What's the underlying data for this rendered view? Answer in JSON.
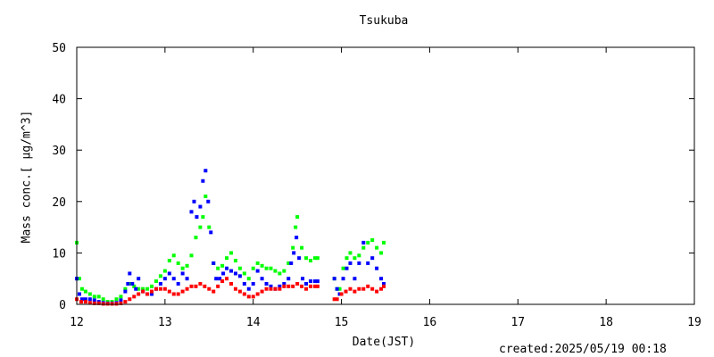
{
  "chart_data": {
    "type": "scatter",
    "title": "Tsukuba",
    "xlabel": "Date(JST)",
    "ylabel": "Mass conc.[ μg/m^3]",
    "footer": "created:2025/05/19 00:18",
    "xlim": [
      12,
      19
    ],
    "ylim": [
      0,
      50
    ],
    "xticks": [
      12,
      13,
      14,
      15,
      16,
      17,
      18,
      19
    ],
    "yticks": [
      0,
      10,
      20,
      30,
      40,
      50
    ],
    "grid": false,
    "legend": "none",
    "colors": {
      "green": "#00ff00",
      "blue": "#0000ff",
      "red": "#ff0000",
      "axis": "#000000"
    },
    "series": [
      {
        "color": "#00ff00",
        "x": [
          12.0,
          12.03,
          12.06,
          12.1,
          12.15,
          12.2,
          12.25,
          12.3,
          12.35,
          12.4,
          12.45,
          12.5,
          12.55,
          12.6,
          12.65,
          12.7,
          12.75,
          12.8,
          12.85,
          12.9,
          12.95,
          13.0,
          13.05,
          13.1,
          13.15,
          13.2,
          13.25,
          13.3,
          13.35,
          13.4,
          13.43,
          13.46,
          13.5,
          13.55,
          13.6,
          13.65,
          13.7,
          13.75,
          13.8,
          13.85,
          13.9,
          13.95,
          14.0,
          14.05,
          14.1,
          14.15,
          14.2,
          14.25,
          14.3,
          14.35,
          14.4,
          14.45,
          14.48,
          14.5,
          14.55,
          14.6,
          14.65,
          14.7,
          14.73,
          14.92,
          14.95,
          14.98,
          15.02,
          15.06,
          15.1,
          15.15,
          15.2,
          15.25,
          15.3,
          15.35,
          15.4,
          15.45,
          15.48
        ],
        "y": [
          12,
          5,
          3,
          2.5,
          2,
          1.5,
          1.5,
          1,
          0.5,
          0.5,
          1,
          1.5,
          3,
          4,
          3.5,
          3,
          3,
          3,
          3.5,
          4.5,
          5.5,
          6.5,
          8.5,
          9.5,
          8,
          7,
          7.5,
          9.5,
          13,
          15,
          17,
          21,
          15,
          8,
          7,
          7.5,
          9,
          10,
          8.5,
          7,
          6,
          5,
          7,
          8,
          7.5,
          7,
          7,
          6.5,
          6,
          6.5,
          8,
          11,
          15,
          17,
          11,
          9,
          8.5,
          9,
          9,
          5,
          3,
          3,
          7,
          9,
          10,
          9,
          9.5,
          11,
          12,
          12.5,
          11,
          10,
          12
        ]
      },
      {
        "color": "#0000ff",
        "x": [
          12.0,
          12.03,
          12.06,
          12.1,
          12.15,
          12.2,
          12.25,
          12.3,
          12.35,
          12.4,
          12.45,
          12.5,
          12.55,
          12.58,
          12.6,
          12.63,
          12.67,
          12.7,
          12.75,
          12.8,
          12.85,
          12.9,
          12.95,
          13.0,
          13.05,
          13.1,
          13.15,
          13.2,
          13.25,
          13.3,
          13.33,
          13.36,
          13.4,
          13.43,
          13.46,
          13.49,
          13.52,
          13.55,
          13.58,
          13.62,
          13.66,
          13.7,
          13.75,
          13.8,
          13.85,
          13.9,
          13.95,
          14.0,
          14.05,
          14.1,
          14.15,
          14.2,
          14.25,
          14.3,
          14.35,
          14.4,
          14.43,
          14.46,
          14.49,
          14.52,
          14.56,
          14.6,
          14.65,
          14.7,
          14.73,
          14.92,
          14.95,
          14.98,
          15.02,
          15.06,
          15.1,
          15.15,
          15.2,
          15.25,
          15.3,
          15.35,
          15.4,
          15.45,
          15.48
        ],
        "y": [
          5,
          2,
          1,
          1,
          1,
          0.8,
          0.5,
          0.3,
          0.2,
          0.2,
          0.3,
          0.8,
          2.5,
          4,
          6,
          4,
          3,
          5,
          2.5,
          2,
          2,
          3,
          4,
          5,
          6,
          5,
          4,
          6,
          5,
          18,
          20,
          17,
          19,
          24,
          26,
          20,
          14,
          8,
          5,
          5,
          6,
          7,
          6.5,
          6,
          5.5,
          4,
          3,
          4,
          6.5,
          5,
          4,
          3.5,
          3,
          3.5,
          4,
          5,
          8,
          10,
          13,
          9,
          5,
          4,
          4.5,
          4.5,
          4.5,
          5,
          3,
          2,
          5,
          7,
          8,
          5,
          8,
          12,
          8,
          9,
          7,
          5,
          4
        ]
      },
      {
        "color": "#ff0000",
        "x": [
          12.0,
          12.05,
          12.1,
          12.15,
          12.2,
          12.25,
          12.3,
          12.35,
          12.4,
          12.45,
          12.5,
          12.55,
          12.6,
          12.65,
          12.7,
          12.75,
          12.8,
          12.85,
          12.9,
          12.95,
          13.0,
          13.05,
          13.1,
          13.15,
          13.2,
          13.25,
          13.3,
          13.35,
          13.4,
          13.45,
          13.5,
          13.55,
          13.6,
          13.65,
          13.7,
          13.75,
          13.8,
          13.85,
          13.9,
          13.95,
          14.0,
          14.05,
          14.1,
          14.15,
          14.2,
          14.25,
          14.3,
          14.35,
          14.4,
          14.45,
          14.5,
          14.55,
          14.6,
          14.65,
          14.7,
          14.73,
          14.92,
          14.95,
          15.0,
          15.05,
          15.1,
          15.15,
          15.2,
          15.25,
          15.3,
          15.35,
          15.4,
          15.45,
          15.48
        ],
        "y": [
          1,
          0.5,
          0.5,
          0.3,
          0.2,
          0.2,
          0.1,
          0.1,
          0.1,
          0.1,
          0.2,
          0.5,
          1,
          1.5,
          2,
          2.5,
          2,
          2.5,
          3,
          3,
          3,
          2.5,
          2,
          2,
          2.5,
          3,
          3.5,
          3.5,
          4,
          3.5,
          3,
          2.5,
          3.5,
          4.5,
          5,
          4,
          3,
          2.5,
          2,
          1.5,
          1.5,
          2,
          2.5,
          3,
          3,
          3,
          3,
          3.5,
          3.5,
          3.5,
          4,
          3.5,
          3,
          3.5,
          3.5,
          3.5,
          1,
          1,
          2,
          2.5,
          3,
          2.5,
          3,
          3,
          3.5,
          3,
          2.5,
          3,
          3.5
        ]
      }
    ]
  }
}
